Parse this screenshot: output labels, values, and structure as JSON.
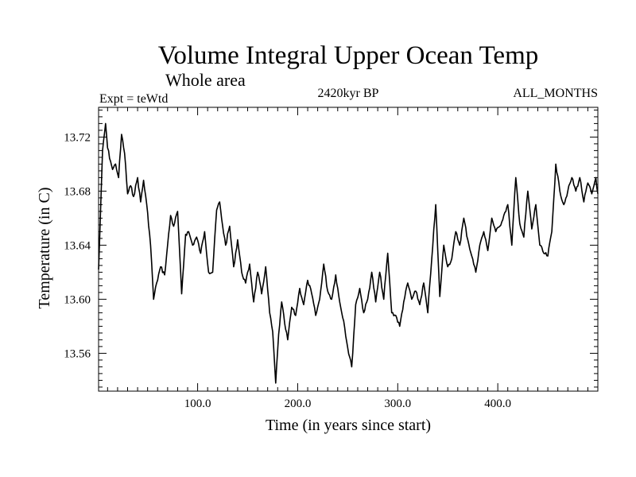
{
  "chart_data": {
    "type": "line",
    "title": "Volume Integral Upper Ocean Temp",
    "subtitle": "Whole area",
    "annotations": {
      "left": "Expt = teWtd",
      "center": "2420kyr BP",
      "right": "ALL_MONTHS"
    },
    "xlabel": "Time (in years since start)",
    "ylabel": "Temperature (in C)",
    "xlim": [
      1,
      500
    ],
    "ylim": [
      13.532,
      13.742
    ],
    "xticks": [
      100,
      200,
      300,
      400
    ],
    "xtick_labels": [
      "100.0",
      "200.0",
      "300.0",
      "400.0"
    ],
    "yticks": [
      13.56,
      13.6,
      13.64,
      13.68,
      13.72
    ],
    "ytick_labels": [
      "13.56",
      "13.60",
      "13.64",
      "13.68",
      "13.72"
    ],
    "grid": false,
    "series": [
      {
        "name": "Upper Ocean Temp",
        "color": "#000000",
        "x": [
          1,
          5,
          8,
          10,
          13,
          15,
          18,
          21,
          24,
          27,
          30,
          33,
          36,
          40,
          43,
          46,
          50,
          53,
          56,
          59,
          63,
          67,
          70,
          73,
          76,
          80,
          84,
          88,
          91,
          95,
          99,
          103,
          107,
          111,
          115,
          119,
          122,
          125,
          128,
          132,
          136,
          140,
          144,
          148,
          152,
          156,
          160,
          164,
          168,
          172,
          175,
          178,
          181,
          184,
          187,
          190,
          194,
          198,
          202,
          206,
          210,
          214,
          218,
          222,
          226,
          230,
          234,
          238,
          242,
          246,
          250,
          254,
          258,
          262,
          266,
          270,
          274,
          278,
          282,
          286,
          290,
          294,
          298,
          302,
          306,
          310,
          314,
          318,
          322,
          326,
          330,
          334,
          338,
          342,
          346,
          350,
          354,
          358,
          362,
          366,
          370,
          374,
          378,
          382,
          386,
          390,
          394,
          398,
          402,
          406,
          410,
          414,
          418,
          422,
          426,
          430,
          434,
          438,
          442,
          446,
          450,
          454,
          458,
          462,
          466,
          470,
          474,
          478,
          482,
          486,
          490,
          494,
          498,
          500
        ],
        "y": [
          13.622,
          13.71,
          13.73,
          13.712,
          13.702,
          13.696,
          13.7,
          13.69,
          13.722,
          13.708,
          13.678,
          13.684,
          13.676,
          13.69,
          13.672,
          13.688,
          13.664,
          13.64,
          13.6,
          13.612,
          13.624,
          13.618,
          13.64,
          13.662,
          13.654,
          13.665,
          13.604,
          13.648,
          13.65,
          13.64,
          13.646,
          13.634,
          13.65,
          13.62,
          13.62,
          13.666,
          13.672,
          13.654,
          13.64,
          13.654,
          13.624,
          13.644,
          13.62,
          13.612,
          13.626,
          13.598,
          13.62,
          13.604,
          13.624,
          13.59,
          13.576,
          13.538,
          13.574,
          13.598,
          13.582,
          13.57,
          13.594,
          13.588,
          13.608,
          13.596,
          13.614,
          13.604,
          13.588,
          13.6,
          13.626,
          13.606,
          13.6,
          13.618,
          13.598,
          13.584,
          13.564,
          13.55,
          13.596,
          13.608,
          13.59,
          13.6,
          13.62,
          13.598,
          13.62,
          13.6,
          13.634,
          13.59,
          13.588,
          13.58,
          13.598,
          13.612,
          13.6,
          13.606,
          13.596,
          13.612,
          13.59,
          13.63,
          13.67,
          13.602,
          13.64,
          13.624,
          13.63,
          13.65,
          13.64,
          13.66,
          13.644,
          13.632,
          13.62,
          13.64,
          13.65,
          13.636,
          13.66,
          13.65,
          13.654,
          13.662,
          13.67,
          13.64,
          13.69,
          13.656,
          13.646,
          13.68,
          13.652,
          13.67,
          13.64,
          13.634,
          13.632,
          13.65,
          13.7,
          13.68,
          13.67,
          13.68,
          13.69,
          13.68,
          13.69,
          13.672,
          13.686,
          13.678,
          13.69,
          13.678
        ]
      }
    ]
  }
}
